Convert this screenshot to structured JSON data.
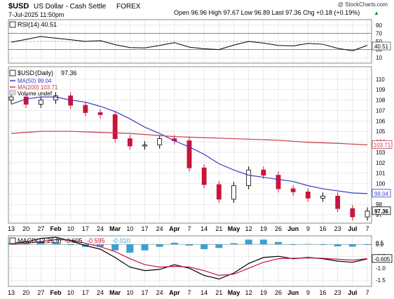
{
  "header": {
    "symbol": "$USD",
    "name": "US Dollar - Cash Settle",
    "exchange": "FOREX",
    "date": "7-Jul-2025 11:50pm",
    "ohlc_text": "Open 96.96  High 97.67  Low 96.89  Last 97.36  Chg +0.18 (+0.19%)",
    "ohlc_arrow": "▲",
    "watermark": "@ StockCharts.com"
  },
  "colors": {
    "ma50": "#3a3ac8",
    "ma200": "#c83a4a",
    "up": "#000000",
    "down": "#c8143c",
    "macd_hist": "#3aa0d2",
    "macd_line": "#000000",
    "signal_line": "#c8143c",
    "rsi_line": "#000000",
    "grid": "#dcdcdc"
  },
  "legends": {
    "price": {
      "symbol": "$USD",
      "period": "(Daily)",
      "value": "97.36",
      "ma50": "MA(50) 99.04",
      "ma200": "MA(200) 103.71",
      "volume": "Volume undef"
    },
    "rsi": "RSI(14) 40.51",
    "macd": {
      "label": "MACD(12,26,9)",
      "macd": "-0.605",
      "signal": "-0.595",
      "hist": "-0.010"
    }
  },
  "badges": {
    "last": "97.36",
    "ma50": "99.04",
    "ma200": "103.71",
    "rsi": "40.51",
    "macd": "-0.605",
    "rsi_50": "50"
  },
  "chart_data": [
    {
      "type": "line",
      "title": "RSI(14) 40.51",
      "ylim": [
        0,
        100
      ],
      "yticks": [
        10,
        30,
        50,
        70,
        90
      ],
      "reference_lines": [
        30,
        70
      ],
      "x": [
        "Jan 13",
        "Jan 20",
        "Jan 27",
        "Feb 3",
        "Feb 10",
        "Feb 17",
        "Feb 24",
        "Mar 3",
        "Mar 10",
        "Mar 17",
        "Mar 24",
        "Apr 1",
        "Apr 7",
        "Apr 14",
        "Apr 21",
        "May 1",
        "May 12",
        "May 19",
        "May 26",
        "Jun 2",
        "Jun 9",
        "Jun 16",
        "Jun 23",
        "Jul 1",
        "Jul 7"
      ],
      "series": [
        {
          "name": "RSI(14)",
          "values": [
            48,
            55,
            62,
            58,
            54,
            50,
            52,
            42,
            35,
            34,
            40,
            47,
            36,
            32,
            30,
            41,
            50,
            46,
            40,
            39,
            45,
            43,
            33,
            27,
            40.51
          ]
        }
      ]
    },
    {
      "type": "candlestick",
      "title": "$USD (Daily) 97.36",
      "ylim": [
        96.2,
        111.2
      ],
      "yticks": [
        97,
        98,
        99,
        100,
        101,
        102,
        103,
        104,
        105,
        106,
        107,
        108,
        109,
        110
      ],
      "x": [
        "Jan 13",
        "Jan 20",
        "Jan 27",
        "Feb 3",
        "Feb 10",
        "Feb 17",
        "Feb 24",
        "Mar 3",
        "Mar 10",
        "Mar 17",
        "Mar 24",
        "Apr 1",
        "Apr 7",
        "Apr 14",
        "Apr 21",
        "May 1",
        "May 12",
        "May 19",
        "May 26",
        "Jun 2",
        "Jun 9",
        "Jun 16",
        "Jun 23",
        "Jul 1",
        "Jul 7"
      ],
      "close": [
        108.3,
        107.6,
        108.0,
        108.4,
        107.5,
        106.8,
        106.6,
        104.3,
        103.6,
        103.7,
        104.3,
        104.1,
        101.5,
        99.9,
        98.5,
        99.8,
        101.3,
        100.8,
        99.5,
        99.2,
        98.6,
        98.8,
        97.6,
        96.8,
        97.36
      ],
      "series": [
        {
          "name": "MA(50)",
          "values": [
            107.6,
            108.1,
            108.3,
            108.3,
            108.0,
            107.8,
            107.4,
            106.9,
            106.2,
            105.4,
            104.8,
            104.1,
            103.5,
            102.8,
            101.9,
            101.3,
            100.8,
            100.6,
            100.4,
            100.2,
            99.8,
            99.5,
            99.3,
            99.1,
            99.04
          ]
        },
        {
          "name": "MA(200)",
          "values": [
            104.8,
            104.9,
            105.0,
            105.0,
            105.0,
            104.95,
            104.9,
            104.85,
            104.8,
            104.7,
            104.6,
            104.5,
            104.45,
            104.4,
            104.35,
            104.3,
            104.25,
            104.2,
            104.15,
            104.05,
            103.95,
            103.9,
            103.85,
            103.78,
            103.71
          ]
        }
      ]
    },
    {
      "type": "line",
      "title": "MACD(12,26,9) -0.605, -0.595, -0.010",
      "ylim": [
        -1.7,
        0.3
      ],
      "yticks": [
        0.5,
        0.0,
        -0.5,
        -1.0,
        -1.5
      ],
      "x": [
        "Jan 13",
        "Jan 20",
        "Jan 27",
        "Feb 3",
        "Feb 10",
        "Feb 17",
        "Feb 24",
        "Mar 3",
        "Mar 10",
        "Mar 17",
        "Mar 24",
        "Apr 1",
        "Apr 7",
        "Apr 14",
        "Apr 21",
        "May 1",
        "May 12",
        "May 19",
        "May 26",
        "Jun 2",
        "Jun 9",
        "Jun 16",
        "Jun 23",
        "Jul 1",
        "Jul 7"
      ],
      "series": [
        {
          "name": "MACD",
          "values": [
            0.05,
            0.1,
            0.25,
            0.3,
            0.15,
            -0.05,
            -0.2,
            -0.55,
            -0.95,
            -1.1,
            -1.05,
            -0.85,
            -1.0,
            -1.3,
            -1.45,
            -1.2,
            -0.8,
            -0.55,
            -0.5,
            -0.6,
            -0.55,
            -0.6,
            -0.7,
            -0.75,
            -0.605
          ]
        },
        {
          "name": "Signal",
          "values": [
            0.0,
            0.05,
            0.12,
            0.2,
            0.18,
            0.05,
            -0.1,
            -0.3,
            -0.6,
            -0.85,
            -0.95,
            -0.92,
            -0.95,
            -1.1,
            -1.3,
            -1.25,
            -1.0,
            -0.75,
            -0.6,
            -0.58,
            -0.57,
            -0.58,
            -0.62,
            -0.66,
            -0.595
          ]
        },
        {
          "name": "Histogram",
          "values": [
            0.05,
            0.05,
            0.13,
            0.1,
            -0.03,
            -0.1,
            -0.1,
            -0.25,
            -0.35,
            -0.25,
            -0.1,
            0.07,
            -0.05,
            -0.2,
            -0.15,
            0.05,
            0.2,
            0.2,
            0.1,
            -0.02,
            0.02,
            -0.02,
            -0.08,
            -0.09,
            -0.01
          ]
        }
      ]
    }
  ],
  "x_axis_labels": [
    "13",
    "20",
    "27",
    "Feb",
    "10",
    "17",
    "24",
    "Mar",
    "10",
    "17",
    "24",
    "Apr",
    "7",
    "14",
    "21",
    "May",
    "12",
    "19",
    "26",
    "Jun",
    "9",
    "16",
    "23",
    "Jul",
    "7"
  ]
}
